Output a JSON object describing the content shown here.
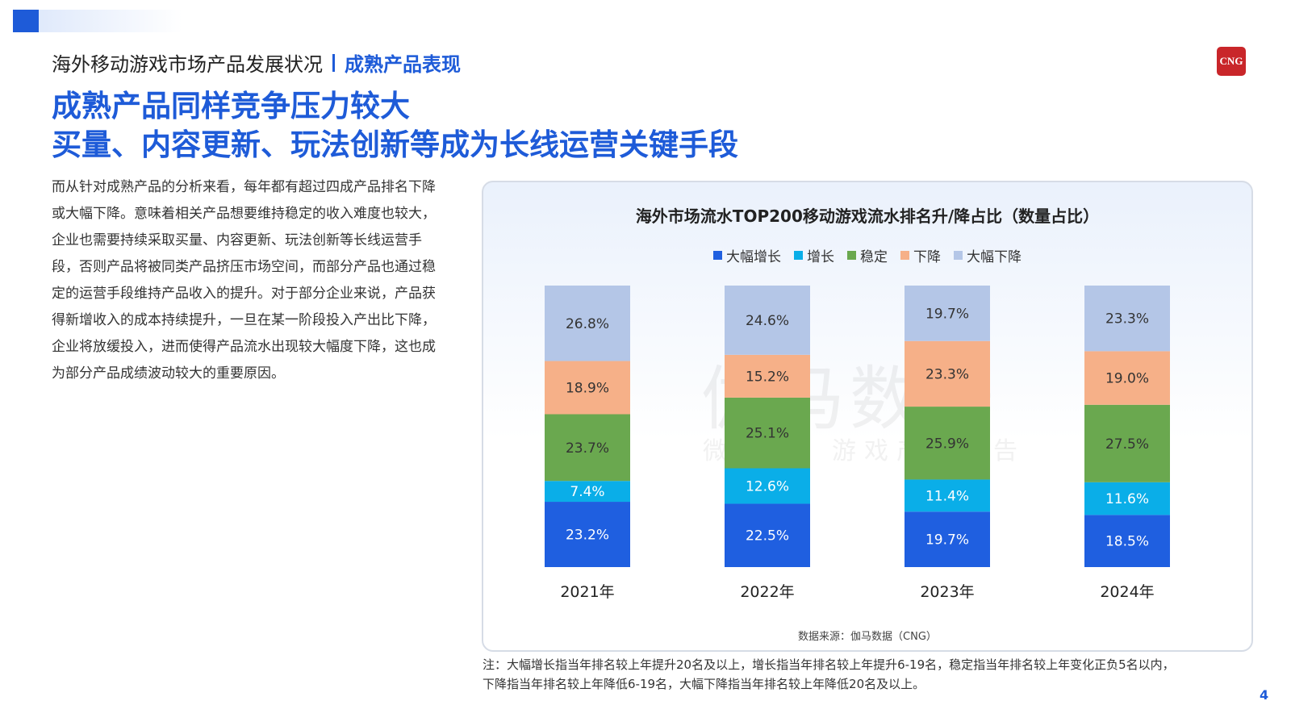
{
  "header": {
    "report_title": "海外移动游戏市场产品发展状况",
    "section_title": "成熟产品表现",
    "logo_text": "CNG"
  },
  "headline": {
    "line1": "成熟产品同样竞争压力较大",
    "line2": "买量、内容更新、玩法创新等成为长线运营关键手段"
  },
  "body_text": "而从针对成熟产品的分析来看，每年都有超过四成产品排名下降或大幅下降。意味着相关产品想要维持稳定的收入难度也较大，企业也需要持续采取买量、内容更新、玩法创新等长线运营手段，否则产品将被同类产品挤压市场空间，而部分产品也通过稳定的运营手段维持产品收入的提升。对于部分企业来说，产品获得新增收入的成本持续提升，一旦在某一阶段投入产出比下降，企业将放缓投入，进而使得产品流水出现较大幅度下降，这也成为部分产品成绩波动较大的重要原因。",
  "watermark": {
    "main": "伽马数据",
    "sub": "微信号：游戏产业报告"
  },
  "chart_data": {
    "type": "bar",
    "stacked": true,
    "title": "海外市场流水TOP200移动游戏流水排名升/降占比（数量占比）",
    "categories": [
      "2021年",
      "2022年",
      "2023年",
      "2024年"
    ],
    "series": [
      {
        "name": "大幅增长",
        "color": "#1f5fe0",
        "values": [
          23.2,
          22.5,
          19.7,
          18.5
        ]
      },
      {
        "name": "增长",
        "color": "#0aaee8",
        "values": [
          7.4,
          12.6,
          11.4,
          11.6
        ]
      },
      {
        "name": "稳定",
        "color": "#6aa84f",
        "values": [
          23.7,
          25.1,
          25.9,
          27.5
        ]
      },
      {
        "name": "下降",
        "color": "#f6b088",
        "values": [
          18.9,
          15.2,
          23.3,
          19.0
        ]
      },
      {
        "name": "大幅下降",
        "color": "#b4c6e7",
        "values": [
          26.8,
          24.6,
          19.7,
          23.3
        ]
      }
    ],
    "value_suffix": "%",
    "legend_position": "top-center",
    "ylim": [
      0,
      100
    ],
    "grid": false,
    "xlabel": "",
    "ylabel": ""
  },
  "source": "数据来源：伽马数据（CNG）",
  "note": {
    "line1": "注：大幅增长指当年排名较上年提升20名及以上，增长指当年排名较上年提升6-19名，稳定指当年排名较上年变化正负5名以内，",
    "line2": "下降指当年排名较上年降低6-19名，大幅下降指当年排名较上年降低20名及以上。"
  },
  "page_number": "4"
}
